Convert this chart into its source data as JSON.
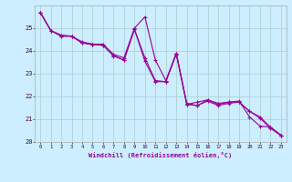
{
  "xlabel": "Windchill (Refroidissement éolien,°C)",
  "bg_color": "#cceeff",
  "grid_color": "#aacccc",
  "line_color": "#990099",
  "xlim": [
    -0.5,
    23.5
  ],
  "ylim": [
    20,
    26
  ],
  "yticks": [
    20,
    21,
    22,
    23,
    24,
    25
  ],
  "xticks": [
    0,
    1,
    2,
    3,
    4,
    5,
    6,
    7,
    8,
    9,
    10,
    11,
    12,
    13,
    14,
    15,
    16,
    17,
    18,
    19,
    20,
    21,
    22,
    23
  ],
  "series": [
    [
      25.7,
      24.9,
      24.7,
      24.65,
      24.4,
      24.3,
      24.3,
      23.85,
      23.7,
      25.0,
      25.5,
      23.6,
      22.7,
      23.9,
      21.7,
      21.6,
      21.85,
      21.7,
      21.75,
      21.75,
      21.35,
      21.1,
      20.65,
      20.3
    ],
    [
      25.7,
      24.9,
      24.65,
      24.65,
      24.35,
      24.3,
      24.25,
      23.8,
      23.6,
      24.95,
      23.55,
      22.65,
      22.65,
      23.85,
      21.65,
      21.75,
      21.85,
      21.65,
      21.75,
      21.8,
      21.1,
      20.7,
      20.65,
      20.3
    ],
    [
      25.7,
      24.9,
      24.65,
      24.65,
      24.35,
      24.28,
      24.25,
      23.78,
      23.6,
      24.95,
      23.7,
      22.7,
      22.65,
      23.9,
      21.65,
      21.6,
      21.8,
      21.6,
      21.7,
      21.75,
      21.35,
      21.05,
      20.6,
      20.28
    ]
  ]
}
